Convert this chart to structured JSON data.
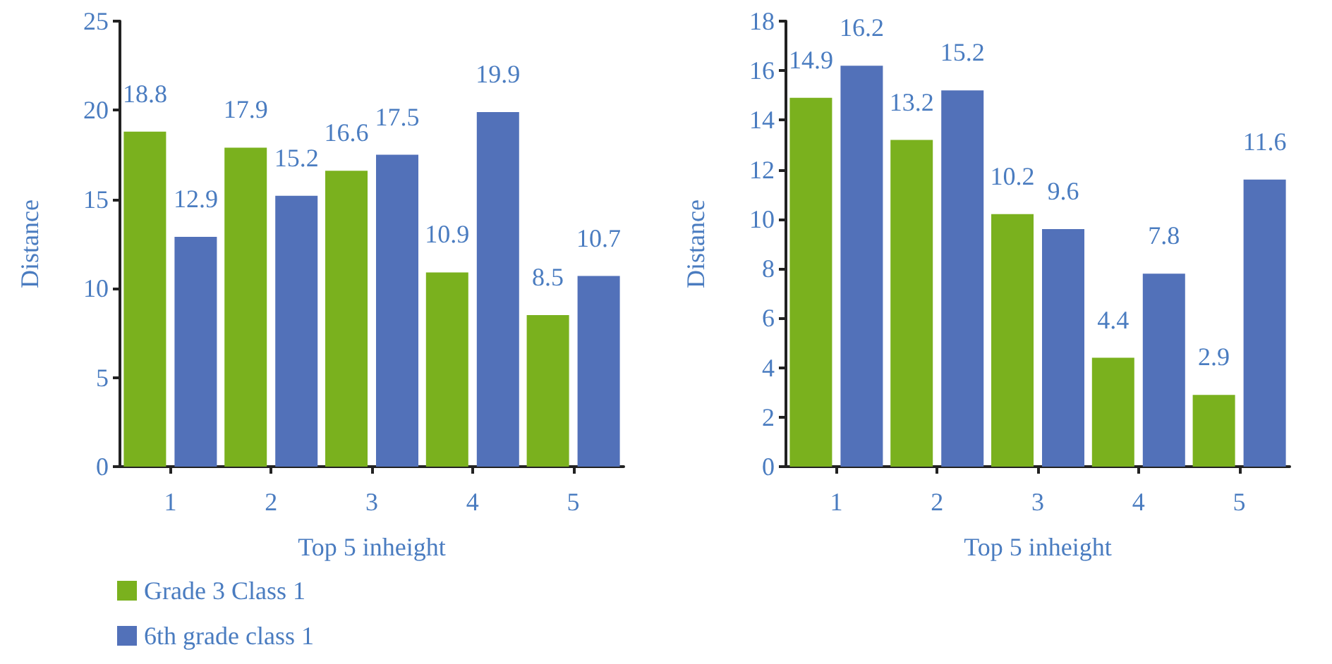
{
  "chart_data": [
    {
      "type": "bar",
      "xlabel": "Top 5 inheight",
      "ylabel": "Distance",
      "categories": [
        "1",
        "2",
        "3",
        "4",
        "5"
      ],
      "series": [
        {
          "name": "Grade 3 Class 1",
          "color": "#7ab11e",
          "values": [
            18.8,
            17.9,
            16.6,
            10.9,
            8.5
          ]
        },
        {
          "name": "6th grade class 1",
          "color": "#5271b9",
          "values": [
            12.9,
            15.2,
            17.5,
            19.9,
            10.7
          ]
        }
      ],
      "ylim": [
        0,
        25
      ],
      "yticks": [
        0,
        5,
        10,
        15,
        20,
        25
      ],
      "grid": false,
      "legend": "bottom left",
      "data_labels": true
    },
    {
      "type": "bar",
      "xlabel": "Top 5 inheight",
      "ylabel": "Distance",
      "categories": [
        "1",
        "2",
        "3",
        "4",
        "5"
      ],
      "series": [
        {
          "color": "#7ab11e",
          "values": [
            14.9,
            13.2,
            10.2,
            4.4,
            2.9
          ]
        },
        {
          "color": "#5271b9",
          "values": [
            16.2,
            15.2,
            9.6,
            7.8,
            11.6
          ]
        }
      ],
      "ylim": [
        0,
        18
      ],
      "yticks": [
        0,
        2,
        4,
        6,
        8,
        10,
        12,
        14,
        16,
        18
      ],
      "grid": false,
      "legend": false,
      "data_labels": true
    }
  ]
}
